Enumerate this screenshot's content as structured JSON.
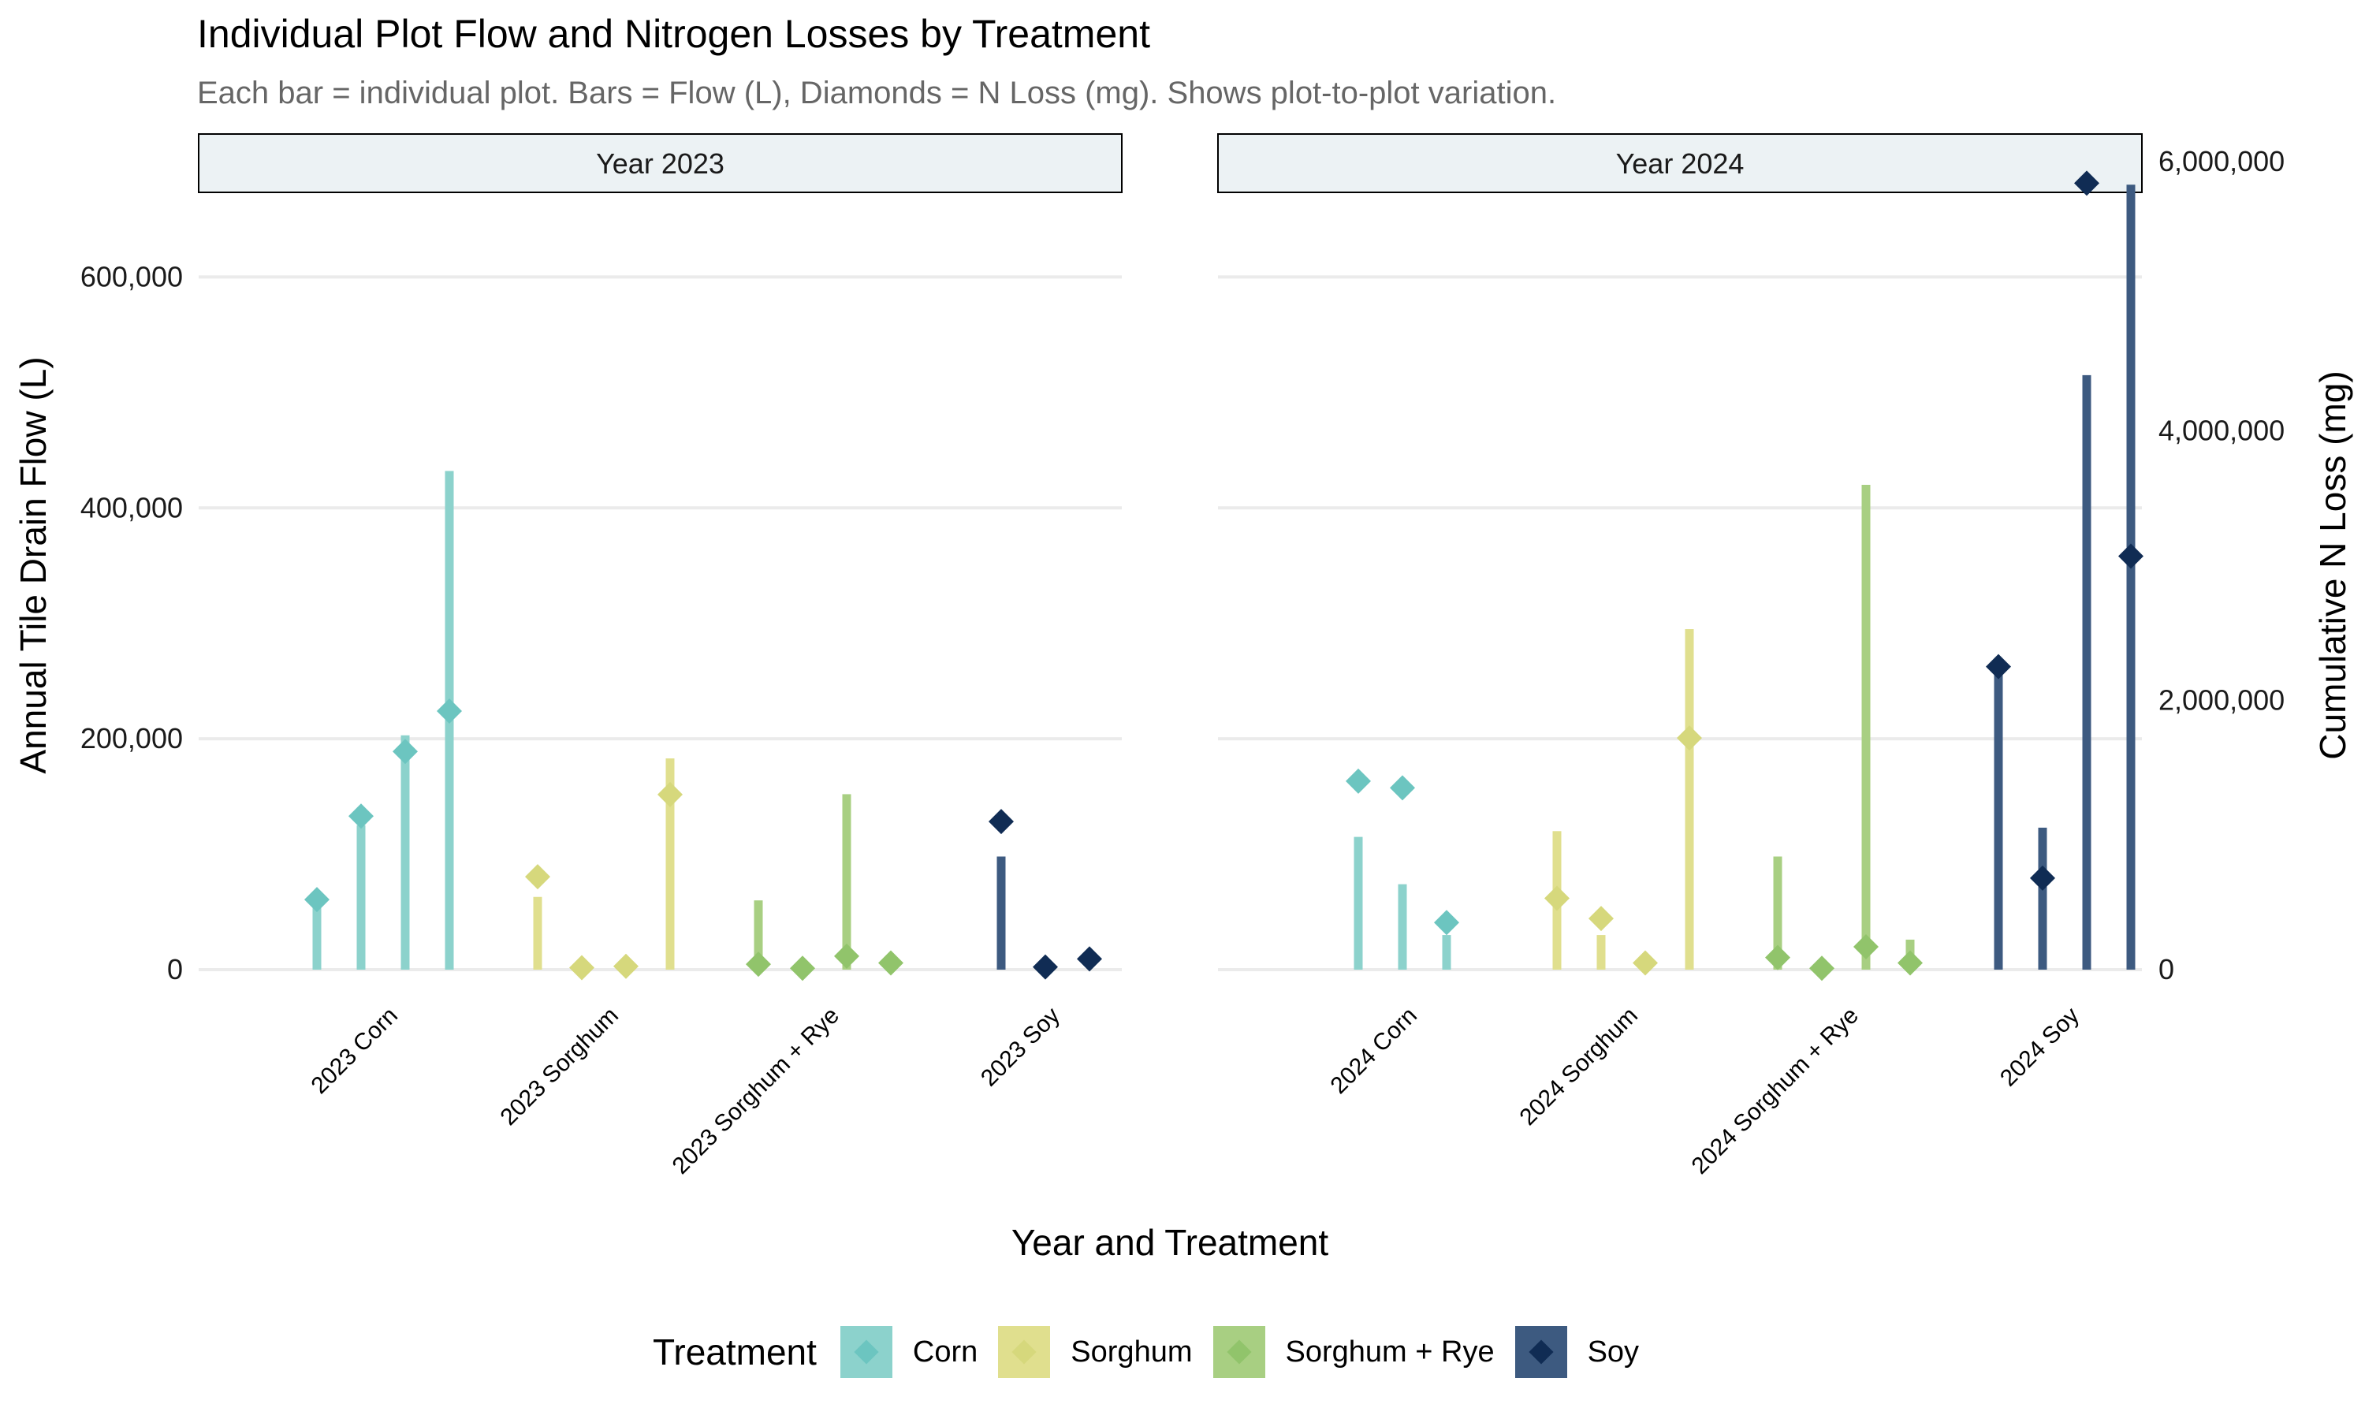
{
  "title": "Individual Plot Flow and Nitrogen Losses by Treatment",
  "subtitle": "Each bar = individual plot. Bars = Flow (L), Diamonds = N Loss (mg). Shows plot-to-plot variation.",
  "legend": {
    "title": "Treatment",
    "items": [
      {
        "label": "Corn",
        "bar_color": "#8cd2cc",
        "diamond_color": "#6cc5c0"
      },
      {
        "label": "Sorghum",
        "bar_color": "#e0df8e",
        "diamond_color": "#d6d87c"
      },
      {
        "label": "Sorghum + Rye",
        "bar_color": "#a8cf82",
        "diamond_color": "#91c46b"
      },
      {
        "label": "Soy",
        "bar_color": "#3d5a80",
        "diamond_color": "#102c54"
      }
    ]
  },
  "chart_data": {
    "type": "bar",
    "title": "Individual Plot Flow and Nitrogen Losses by Treatment",
    "subtitle": "Each bar = individual plot. Bars = Flow (L), Diamonds = N Loss (mg). Shows plot-to-plot variation.",
    "xlabel": "Year and Treatment",
    "ylabel": "Annual Tile Drain Flow (L)",
    "y2label": "Cumulative N Loss (mg)",
    "ylim": [
      0,
      700000
    ],
    "y2lim": [
      0,
      6000000
    ],
    "yticks": [
      0,
      200000,
      400000,
      600000
    ],
    "ytick_labels": [
      "0",
      "200,000",
      "400,000",
      "600,000"
    ],
    "y2ticks": [
      0,
      2000000,
      4000000,
      6000000
    ],
    "y2tick_labels": [
      "0",
      "2,000,000",
      "4,000,000",
      "6,000,000"
    ],
    "grid": true,
    "legend_position": "bottom",
    "panels": [
      {
        "label": "Year 2023",
        "groups": [
          {
            "category": "2023 Corn",
            "treatment": "Corn",
            "flow_L": [
              55000,
              125000,
              203000,
              432000
            ],
            "n_loss_mg": [
              520000,
              1140000,
              1620000,
              1920000
            ]
          },
          {
            "category": "2023 Sorghum",
            "treatment": "Sorghum",
            "flow_L": [
              63000,
              1000,
              1000,
              183000
            ],
            "n_loss_mg": [
              690000,
              15000,
              25000,
              1300000
            ]
          },
          {
            "category": "2023 Sorghum + Rye",
            "treatment": "Sorghum + Rye",
            "flow_L": [
              60000,
              500,
              152000,
              4000
            ],
            "n_loss_mg": [
              40000,
              10000,
              100000,
              50000
            ]
          },
          {
            "category": "2023 Soy",
            "treatment": "Soy",
            "flow_L": [
              98000,
              0,
              0
            ],
            "n_loss_mg": [
              1100000,
              20000,
              80000
            ]
          }
        ]
      },
      {
        "label": "Year 2024",
        "groups": [
          {
            "category": "2024 Corn",
            "treatment": "Corn",
            "flow_L": [
              115000,
              74000,
              30000
            ],
            "n_loss_mg": [
              1400000,
              1350000,
              350000
            ]
          },
          {
            "category": "2024 Sorghum",
            "treatment": "Sorghum",
            "flow_L": [
              120000,
              30000,
              0,
              295000
            ],
            "n_loss_mg": [
              530000,
              380000,
              50000,
              1720000
            ]
          },
          {
            "category": "2024 Sorghum + Rye",
            "treatment": "Sorghum + Rye",
            "flow_L": [
              98000,
              0,
              420000,
              26000
            ],
            "n_loss_mg": [
              90000,
              10000,
              170000,
              50000
            ]
          },
          {
            "category": "2024 Soy",
            "treatment": "Soy",
            "flow_L": [
              263000,
              123000,
              515000,
              680000
            ],
            "n_loss_mg": [
              2250000,
              680000,
              5840000,
              3070000
            ]
          }
        ]
      }
    ]
  }
}
